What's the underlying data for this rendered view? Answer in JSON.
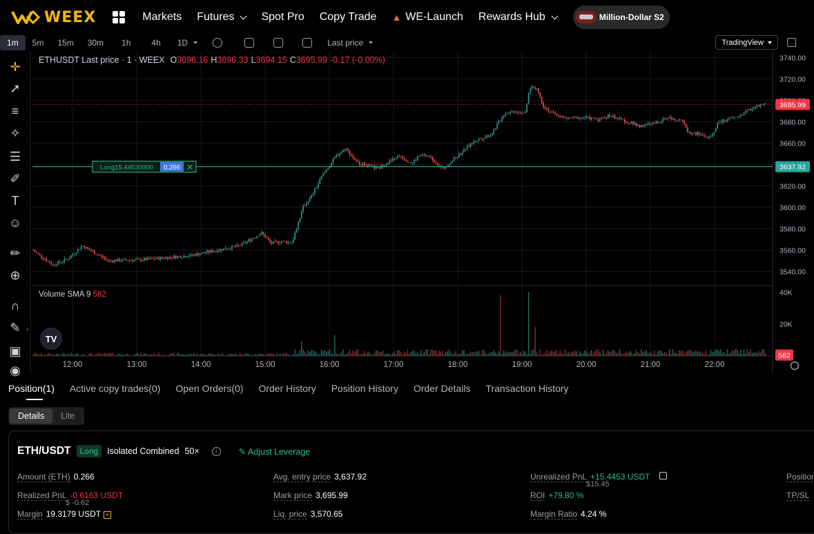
{
  "nav": {
    "logo": "WEEX",
    "items": [
      {
        "label": "Markets"
      },
      {
        "label": "Futures"
      },
      {
        "label": "Spot Pro"
      },
      {
        "label": "Copy Trade"
      },
      {
        "label": "WE-Launch"
      },
      {
        "label": "Rewards Hub"
      }
    ],
    "promo": "Million-Dollar S2"
  },
  "toolbar": {
    "timeframes": [
      "1m",
      "5m",
      "15m",
      "30m",
      "1h",
      "4h",
      "1D"
    ],
    "active": "1m",
    "price_type": "Last price",
    "tradingview": "TradingView"
  },
  "chart_data": {
    "type": "candlestick",
    "symbol": "ETHUSDT Last price · 1 · WEEX",
    "ohlc": {
      "O": "3696.16",
      "H": "3696.33",
      "L": "3694.15",
      "C": "3695.99",
      "change": "-0.17 (-0.00%)"
    },
    "y_ticks": [
      "3740.00",
      "3720.00",
      "3700.00",
      "3680.00",
      "3660.00",
      "3640.00",
      "3620.00",
      "3600.00",
      "3580.00",
      "3560.00",
      "3540.00"
    ],
    "ylim": [
      3528,
      3746
    ],
    "x_ticks": [
      "12:00",
      "13:00",
      "14:00",
      "15:00",
      "16:00",
      "17:00",
      "18:00",
      "19:00",
      "20:00",
      "21:00",
      "22:00"
    ],
    "current_price": "3695.99",
    "entry_price_label": "3637.92",
    "entry_price": 3637.92,
    "current_price_value": 3695.99,
    "position_label": "Long15.44530000",
    "position_size": "0.266",
    "volume_legend": "Volume SMA 9",
    "volume_value": "582",
    "volume_ticks": [
      "40K",
      "20K"
    ],
    "anchors": [
      [
        0,
        3560
      ],
      [
        30,
        3546
      ],
      [
        52,
        3552
      ],
      [
        72,
        3564
      ],
      [
        110,
        3550
      ],
      [
        160,
        3551
      ],
      [
        230,
        3555
      ],
      [
        300,
        3564
      ],
      [
        332,
        3576
      ],
      [
        346,
        3566
      ],
      [
        360,
        3568
      ],
      [
        376,
        3567
      ],
      [
        392,
        3600
      ],
      [
        404,
        3610
      ],
      [
        420,
        3630
      ],
      [
        440,
        3648
      ],
      [
        454,
        3655
      ],
      [
        470,
        3642
      ],
      [
        500,
        3636
      ],
      [
        512,
        3641
      ],
      [
        532,
        3648
      ],
      [
        550,
        3641
      ],
      [
        560,
        3648
      ],
      [
        574,
        3648
      ],
      [
        594,
        3636
      ],
      [
        616,
        3648
      ],
      [
        640,
        3662
      ],
      [
        664,
        3668
      ],
      [
        672,
        3676
      ],
      [
        684,
        3688
      ],
      [
        700,
        3690
      ],
      [
        714,
        3688
      ],
      [
        720,
        3712
      ],
      [
        730,
        3712
      ],
      [
        740,
        3695
      ],
      [
        752,
        3688
      ],
      [
        772,
        3683
      ],
      [
        800,
        3684
      ],
      [
        820,
        3682
      ],
      [
        836,
        3686
      ],
      [
        860,
        3680
      ],
      [
        880,
        3676
      ],
      [
        900,
        3678
      ],
      [
        920,
        3684
      ],
      [
        940,
        3682
      ],
      [
        950,
        3670
      ],
      [
        968,
        3668
      ],
      [
        982,
        3664
      ],
      [
        994,
        3680
      ],
      [
        1020,
        3684
      ],
      [
        1040,
        3692
      ],
      [
        1060,
        3696
      ],
      [
        1068,
        3696
      ]
    ],
    "vol_spikes": [
      [
        390,
        9000
      ],
      [
        438,
        13000
      ],
      [
        678,
        38000
      ],
      [
        718,
        40000
      ],
      [
        728,
        18000
      ],
      [
        1060,
        4000
      ]
    ]
  },
  "tools": [
    "crosshair-icon",
    "trendline-icon",
    "fib-icon",
    "pattern-icon",
    "projection-icon",
    "brush-icon",
    "text-icon",
    "emoji-icon",
    "ruler-icon",
    "zoom-icon",
    "magnet-icon",
    "lock-draw-icon",
    "lock-icon",
    "eye-icon"
  ],
  "bottom": {
    "tabs": [
      "Position(1)",
      "Active copy trades(0)",
      "Open Orders(0)",
      "Order History",
      "Position History",
      "Order Details",
      "Transaction History"
    ],
    "seg": [
      "Details",
      "Lite"
    ],
    "card": {
      "pair": "ETH/USDT",
      "side": "Long",
      "mode": "Isolated Combined",
      "leverage": "50×",
      "adjust": "Adjust Leverage",
      "amount_label": "Amount (ETH)",
      "amount": "0.266",
      "avg_entry_label": "Avg. entry price",
      "avg_entry": "3,637.92",
      "upnl_label": "Unrealized PnL",
      "upnl": "+15.4453 USDT",
      "upnl_usd": "$15.45",
      "position_label": "Position",
      "rpnl_label": "Realized PnL",
      "rpnl": "-0.6163 USDT",
      "rpnl_usd": "$ -0.62",
      "mark_label": "Mark price",
      "mark": "3,695.99",
      "roi_label": "ROI",
      "roi": "+79.80 %",
      "tpsl_label": "TP/SL",
      "margin_label": "Margin",
      "margin": "19.3179 USDT",
      "liq_label": "Liq. price",
      "liq": "3,570.65",
      "mratio_label": "Margin Ratio",
      "mratio": "4.24 %"
    }
  }
}
